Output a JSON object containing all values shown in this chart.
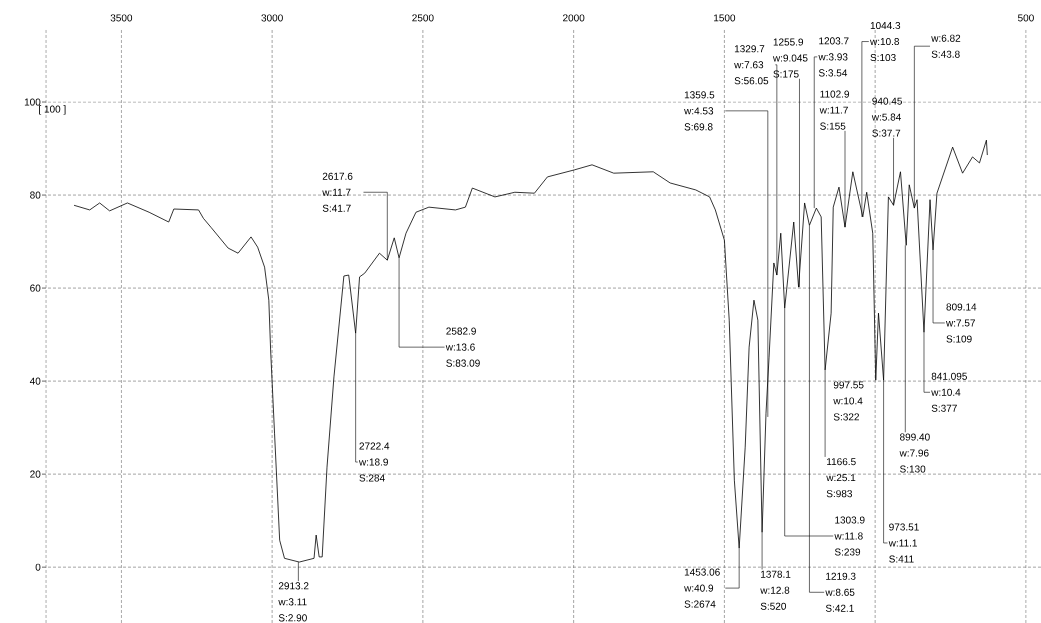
{
  "chart_data": {
    "type": "line",
    "color": "#000000",
    "grid": true,
    "marker": "none",
    "line_style": "solid",
    "xlim": [
      3750,
      450
    ],
    "ylim": [
      -12,
      115.7
    ],
    "xticks": [
      3500,
      3000,
      2500,
      2000,
      1500,
      {
        "value": 1000,
        "label": null
      },
      500
    ],
    "yticks": [
      0,
      20,
      40,
      60,
      80,
      100
    ],
    "x": [
      3657,
      3605,
      3572,
      3539,
      3480,
      3408,
      3343,
      3326,
      3244,
      3228,
      3202,
      3146,
      3113,
      3070,
      3048,
      3025,
      3011,
      3005,
      2992,
      2975,
      2959,
      2910,
      2861,
      2854,
      2844,
      2834,
      2818,
      2795,
      2762,
      2746,
      2723,
      2710,
      2693,
      2644,
      2618,
      2595,
      2579,
      2556,
      2523,
      2480,
      2392,
      2359,
      2336,
      2261,
      2195,
      2130,
      2087,
      1998,
      1939,
      1867,
      1736,
      1680,
      1595,
      1549,
      1530,
      1500,
      1484,
      1467,
      1451,
      1431,
      1418,
      1402,
      1389,
      1375,
      1362,
      1352,
      1336,
      1326,
      1313,
      1300,
      1270,
      1254,
      1234,
      1218,
      1195,
      1179,
      1166,
      1146,
      1139,
      1120,
      1100,
      1074,
      1041,
      1028,
      1008,
      998,
      989,
      972,
      956,
      939,
      916,
      897,
      887,
      870,
      861,
      838,
      818,
      808,
      795,
      743,
      710,
      677,
      654,
      631,
      628
    ],
    "values": [
      77.8,
      76.8,
      78.3,
      76.6,
      78.3,
      76.3,
      74.2,
      77.0,
      76.8,
      75.0,
      73.0,
      68.6,
      67.5,
      71.0,
      68.8,
      64.5,
      57.4,
      46.7,
      28.8,
      5.8,
      1.9,
      1.1,
      1.9,
      6.9,
      2.2,
      2.2,
      21.5,
      40.9,
      62.6,
      62.8,
      50.3,
      62.4,
      63.2,
      67.5,
      66.0,
      70.8,
      66.5,
      71.8,
      76.3,
      77.4,
      76.8,
      77.4,
      81.5,
      79.6,
      80.6,
      80.4,
      83.9,
      85.4,
      86.5,
      84.7,
      85.0,
      82.6,
      81.1,
      79.6,
      76.8,
      70.3,
      53.1,
      18.7,
      4.1,
      25.8,
      47.3,
      57.4,
      53.1,
      7.5,
      33.1,
      45.0,
      65.4,
      62.8,
      71.8,
      55.7,
      74.2,
      60.2,
      78.3,
      73.5,
      77.2,
      75.3,
      42.4,
      54.6,
      77.4,
      81.7,
      73.1,
      85.0,
      75.3,
      80.6,
      71.8,
      40.2,
      54.6,
      40.2,
      79.6,
      77.8,
      85.0,
      69.2,
      82.2,
      77.2,
      79.0,
      50.5,
      79.0,
      68.2,
      80.4,
      90.3,
      84.7,
      88.2,
      86.9,
      91.8,
      88.6
    ],
    "annotations": [
      "[ 100 ]",
      {
        "text": "2617.6\nw:11.7\nS:41.7",
        "x": 2618,
        "y": 66.0
      },
      {
        "text": "2582.9\nw:13.6\nS:83.09",
        "x": 2579,
        "y": 66.5
      },
      {
        "text": "2722.4\nw:18.9\nS:284",
        "x": 2723,
        "y": 50.3
      },
      {
        "text": "2913.2\nw:3.11\nS:2.90",
        "x": 2913,
        "y": 1.1
      },
      {
        "text": "1453.06\nw:40.9\nS:2674",
        "x": 1451,
        "y": 4.1
      },
      {
        "text": "1378.1\nw:12.8\nS:520",
        "x": 1375,
        "y": 7.5
      },
      {
        "text": "1359.5\nw:4.53\nS:69.8",
        "x": 1356,
        "y": 32.3
      },
      {
        "text": "1329.7\nw:7.63\nS:56.05",
        "x": 1326,
        "y": 62.8
      },
      {
        "text": "1255.9\nw:9.045\nS:175",
        "x": 1251,
        "y": 60.2
      },
      {
        "text": "1303.9\nw:11.8\nS:239",
        "x": 1300,
        "y": 55.7
      },
      {
        "text": "1219.3\nw:8.65\nS:42.1",
        "x": 1218,
        "y": 73.5
      },
      {
        "text": "1203.7\nw:3.93\nS:3.54",
        "x": 1202,
        "y": 77.2
      },
      {
        "text": "1166.5\nw:25.1\nS:983",
        "x": 1166,
        "y": 42.4
      },
      {
        "text": "1102.9\nw:11.7\nS:155",
        "x": 1100,
        "y": 73.1
      },
      {
        "text": "1044.3\nw:10.8\nS:103",
        "x": 1044,
        "y": 75.3
      },
      {
        "text": "997.55\nw:10.4\nS:322",
        "x": 995,
        "y": 40.2
      },
      {
        "text": "973.51\nw:11.1\nS:411",
        "x": 972,
        "y": 40.2
      },
      {
        "text": "940.45\nw:5.84\nS:37.7",
        "x": 939,
        "y": 77.8
      },
      {
        "text": "899.40\nw:7.96\nS:130",
        "x": 900,
        "y": 69.2
      },
      {
        "text": "w:6.82\nS:43.8",
        "x": 870,
        "y": 77.2
      },
      {
        "text": "841.095\nw:10.4\nS:377",
        "x": 838,
        "y": 50.5
      },
      {
        "text": "809.14\nw:7.57\nS:109",
        "x": 808,
        "y": 68.2
      }
    ]
  }
}
